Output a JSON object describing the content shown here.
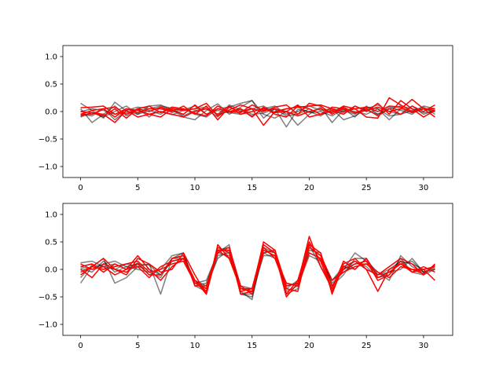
{
  "chart_data": [
    {
      "type": "line",
      "title": "",
      "xlabel": "",
      "ylabel": "",
      "xlim": [
        -1.55,
        32.55
      ],
      "ylim": [
        -1.2,
        1.2
      ],
      "xticks": [
        0,
        5,
        10,
        15,
        20,
        25,
        30
      ],
      "xtick_labels": [
        "0",
        "5",
        "10",
        "15",
        "20",
        "25",
        "30"
      ],
      "yticks": [
        -1.0,
        -0.5,
        0.0,
        0.5,
        1.0
      ],
      "ytick_labels": [
        "−1.0",
        "−0.5",
        "0.0",
        "0.5",
        "1.0"
      ],
      "grid": false,
      "x": [
        0,
        1,
        2,
        3,
        4,
        5,
        6,
        7,
        8,
        9,
        10,
        11,
        12,
        13,
        14,
        15,
        16,
        17,
        18,
        19,
        20,
        21,
        22,
        23,
        24,
        25,
        26,
        27,
        28,
        29,
        30,
        31
      ],
      "series": [
        {
          "color": "#000000",
          "opacity": 0.5,
          "values": [
            0.15,
            0.02,
            -0.12,
            0.17,
            0.01,
            -0.05,
            0.1,
            0.12,
            0.03,
            -0.1,
            -0.15,
            0.02,
            0.14,
            -0.05,
            0.08,
            0.2,
            -0.12,
            0.05,
            -0.28,
            0.04,
            0.0,
            -0.08,
            0.05,
            -0.02,
            0.1,
            0.02,
            -0.05,
            0.08,
            0.02,
            -0.05,
            0.1,
            0.05
          ]
        },
        {
          "color": "#000000",
          "opacity": 0.5,
          "values": [
            0.05,
            -0.2,
            -0.05,
            0.1,
            -0.08,
            0.05,
            -0.1,
            0.08,
            -0.02,
            0.05,
            -0.05,
            -0.1,
            0.05,
            0.08,
            0.15,
            0.2,
            -0.05,
            -0.12,
            0.0,
            -0.25,
            -0.05,
            0.08,
            -0.2,
            0.03,
            -0.05,
            0.08,
            0.05,
            -0.15,
            0.05,
            -0.02,
            0.05,
            0.0
          ]
        },
        {
          "color": "#000000",
          "opacity": 0.5,
          "values": [
            -0.05,
            -0.08,
            0.05,
            -0.15,
            0.02,
            0.08,
            0.05,
            0.1,
            0.06,
            -0.08,
            0.02,
            0.05,
            -0.1,
            0.12,
            0.03,
            -0.08,
            0.05,
            0.1,
            -0.05,
            0.0,
            0.1,
            0.02,
            0.05,
            -0.15,
            -0.08,
            0.05,
            0.12,
            0.0,
            -0.05,
            0.1,
            -0.05,
            0.02
          ]
        },
        {
          "color": "#000000",
          "opacity": 0.5,
          "values": [
            -0.1,
            -0.02,
            -0.1,
            0.0,
            0.1,
            -0.05,
            0.02,
            -0.05,
            0.08,
            0.03,
            0.1,
            -0.05,
            0.02,
            -0.02,
            -0.05,
            0.05,
            0.1,
            -0.02,
            0.05,
            0.08,
            -0.02,
            0.0,
            -0.08,
            0.05,
            0.0,
            -0.05,
            0.05,
            -0.08,
            -0.05,
            0.02,
            0.08,
            -0.05
          ]
        },
        {
          "color": "#000000",
          "opacity": 0.5,
          "values": [
            0.0,
            0.05,
            0.02,
            -0.05,
            -0.02,
            0.03,
            -0.05,
            0.0,
            -0.06,
            0.02,
            0.05,
            0.08,
            -0.05,
            0.0,
            0.05,
            -0.05,
            -0.03,
            0.05,
            -0.08,
            -0.05,
            0.05,
            -0.05,
            0.0,
            0.05,
            -0.1,
            0.1,
            -0.05,
            0.05,
            0.1,
            0.05,
            -0.02,
            0.0
          ]
        },
        {
          "color": "#ff0000",
          "opacity": 1,
          "values": [
            0.07,
            0.08,
            0.1,
            -0.05,
            0.05,
            -0.02,
            0.05,
            0.05,
            0.0,
            0.1,
            -0.05,
            0.1,
            -0.15,
            0.08,
            0.0,
            0.05,
            -0.25,
            0.0,
            0.05,
            0.08,
            0.1,
            0.12,
            0.05,
            0.0,
            0.05,
            -0.1,
            -0.12,
            0.25,
            0.12,
            0.0,
            0.05,
            0.05
          ]
        },
        {
          "color": "#ff0000",
          "opacity": 1,
          "values": [
            -0.05,
            -0.05,
            0.05,
            -0.1,
            0.05,
            0.02,
            -0.05,
            -0.1,
            0.05,
            0.02,
            0.05,
            0.15,
            -0.08,
            0.03,
            0.12,
            0.05,
            0.0,
            0.08,
            0.12,
            -0.05,
            0.15,
            0.1,
            -0.05,
            0.08,
            -0.03,
            0.02,
            0.08,
            0.0,
            0.05,
            0.22,
            0.05,
            -0.1
          ]
        },
        {
          "color": "#ff0000",
          "opacity": 1,
          "values": [
            0.0,
            -0.02,
            -0.08,
            0.05,
            -0.12,
            0.05,
            0.0,
            0.08,
            0.02,
            -0.05,
            0.12,
            -0.05,
            0.05,
            0.0,
            0.05,
            -0.1,
            0.08,
            -0.05,
            -0.1,
            0.1,
            0.05,
            -0.05,
            0.02,
            -0.05,
            0.1,
            0.0,
            0.15,
            -0.05,
            0.2,
            0.05,
            -0.1,
            0.02
          ]
        },
        {
          "color": "#ff0000",
          "opacity": 1,
          "values": [
            -0.08,
            -0.02,
            -0.05,
            -0.2,
            0.02,
            -0.1,
            -0.05,
            0.0,
            -0.05,
            -0.1,
            0.0,
            0.05,
            -0.05,
            0.1,
            -0.05,
            0.0,
            0.05,
            -0.02,
            0.0,
            0.12,
            -0.1,
            -0.05,
            0.08,
            0.05,
            -0.02,
            0.05,
            -0.08,
            0.05,
            -0.05,
            0.1,
            0.0,
            0.12
          ]
        },
        {
          "color": "#ff0000",
          "opacity": 1,
          "values": [
            -0.05,
            0.02,
            0.05,
            0.08,
            -0.05,
            0.05,
            0.1,
            -0.02,
            0.08,
            0.05,
            -0.03,
            -0.08,
            0.1,
            0.0,
            -0.02,
            0.12,
            0.02,
            0.05,
            0.0,
            -0.08,
            0.0,
            0.05,
            -0.02,
            0.1,
            0.05,
            0.08,
            0.0,
            0.1,
            0.08,
            -0.02,
            0.05,
            0.02
          ]
        }
      ]
    },
    {
      "type": "line",
      "title": "",
      "xlabel": "",
      "ylabel": "",
      "xlim": [
        -1.55,
        32.55
      ],
      "ylim": [
        -1.2,
        1.2
      ],
      "xticks": [
        0,
        5,
        10,
        15,
        20,
        25,
        30
      ],
      "xtick_labels": [
        "0",
        "5",
        "10",
        "15",
        "20",
        "25",
        "30"
      ],
      "yticks": [
        -1.0,
        -0.5,
        0.0,
        0.5,
        1.0
      ],
      "ytick_labels": [
        "−1.0",
        "−0.5",
        "0.0",
        "0.5",
        "1.0"
      ],
      "grid": false,
      "x": [
        0,
        1,
        2,
        3,
        4,
        5,
        6,
        7,
        8,
        9,
        10,
        11,
        12,
        13,
        14,
        15,
        16,
        17,
        18,
        19,
        20,
        21,
        22,
        23,
        24,
        25,
        26,
        27,
        28,
        29,
        30,
        31
      ],
      "series": [
        {
          "color": "#000000",
          "opacity": 0.5,
          "values": [
            -0.25,
            0.05,
            0.2,
            -0.25,
            -0.15,
            0.05,
            0.1,
            -0.45,
            0.2,
            0.2,
            -0.2,
            -0.35,
            0.25,
            0.3,
            -0.4,
            -0.55,
            0.4,
            0.3,
            -0.35,
            -0.2,
            0.45,
            0.05,
            -0.3,
            0.0,
            0.3,
            0.15,
            -0.05,
            -0.2,
            0.25,
            0.05,
            -0.05,
            0.05
          ]
        },
        {
          "color": "#000000",
          "opacity": 0.5,
          "values": [
            0.12,
            0.15,
            0.05,
            0.1,
            0.0,
            0.12,
            -0.1,
            0.0,
            0.25,
            0.3,
            -0.3,
            -0.25,
            0.3,
            0.45,
            -0.45,
            -0.5,
            0.3,
            0.35,
            -0.4,
            -0.3,
            0.4,
            0.25,
            -0.2,
            0.05,
            0.0,
            0.2,
            -0.15,
            -0.05,
            0.0,
            0.2,
            -0.05,
            0.0
          ]
        },
        {
          "color": "#000000",
          "opacity": 0.5,
          "values": [
            0.05,
            0.0,
            0.1,
            0.15,
            0.05,
            0.1,
            0.08,
            -0.1,
            0.2,
            0.25,
            -0.2,
            -0.3,
            0.2,
            0.35,
            -0.35,
            -0.4,
            0.25,
            0.25,
            -0.3,
            -0.25,
            0.3,
            0.2,
            -0.25,
            -0.05,
            0.1,
            0.1,
            -0.1,
            0.0,
            0.15,
            0.1,
            0.0,
            0.05
          ]
        },
        {
          "color": "#000000",
          "opacity": 0.5,
          "values": [
            -0.15,
            0.08,
            0.05,
            0.0,
            0.1,
            0.05,
            0.0,
            -0.1,
            0.15,
            0.2,
            -0.25,
            -0.2,
            0.3,
            0.25,
            -0.3,
            -0.35,
            0.3,
            0.2,
            -0.25,
            -0.3,
            0.25,
            0.15,
            -0.2,
            0.0,
            0.15,
            0.05,
            -0.15,
            -0.1,
            0.2,
            -0.05,
            -0.1,
            0.0
          ]
        },
        {
          "color": "#000000",
          "opacity": 0.5,
          "values": [
            0.02,
            -0.05,
            0.15,
            -0.05,
            0.05,
            0.0,
            -0.05,
            -0.15,
            0.2,
            0.3,
            -0.3,
            -0.4,
            0.35,
            0.4,
            -0.45,
            -0.45,
            0.35,
            0.3,
            -0.45,
            -0.35,
            0.35,
            0.3,
            -0.3,
            -0.1,
            0.2,
            0.2,
            -0.1,
            -0.05,
            0.1,
            0.15,
            -0.05,
            0.02
          ]
        },
        {
          "color": "#ff0000",
          "opacity": 1,
          "values": [
            0.1,
            0.0,
            0.05,
            -0.1,
            0.0,
            0.25,
            0.0,
            -0.2,
            0.05,
            0.2,
            -0.2,
            -0.45,
            0.45,
            0.2,
            -0.35,
            -0.35,
            0.45,
            0.3,
            -0.5,
            -0.25,
            0.6,
            0.05,
            -0.35,
            0.15,
            0.0,
            0.2,
            -0.15,
            -0.05,
            0.1,
            0.0,
            0.0,
            0.05
          ]
        },
        {
          "color": "#ff0000",
          "opacity": 1,
          "values": [
            0.0,
            -0.15,
            0.1,
            0.0,
            -0.1,
            0.2,
            0.1,
            -0.05,
            0.0,
            0.3,
            -0.1,
            -0.45,
            0.35,
            0.2,
            -0.35,
            -0.4,
            0.5,
            0.35,
            -0.45,
            -0.2,
            0.5,
            0.15,
            -0.4,
            0.05,
            0.15,
            0.0,
            -0.1,
            0.05,
            0.2,
            0.1,
            -0.1,
            0.1
          ]
        },
        {
          "color": "#ff0000",
          "opacity": 1,
          "values": [
            -0.1,
            0.05,
            0.0,
            0.05,
            0.1,
            0.15,
            -0.05,
            0.0,
            0.1,
            0.15,
            -0.25,
            -0.35,
            0.3,
            0.4,
            -0.3,
            -0.45,
            0.4,
            0.2,
            -0.35,
            -0.4,
            0.45,
            0.3,
            -0.45,
            0.1,
            0.2,
            0.0,
            -0.4,
            0.0,
            0.1,
            -0.05,
            0.05,
            -0.05
          ]
        },
        {
          "color": "#ff0000",
          "opacity": 1,
          "values": [
            0.05,
            0.1,
            -0.05,
            0.1,
            0.0,
            0.05,
            -0.15,
            0.05,
            0.15,
            0.2,
            -0.2,
            -0.4,
            0.4,
            0.3,
            -0.4,
            -0.35,
            0.35,
            0.25,
            -0.25,
            -0.3,
            0.3,
            0.2,
            -0.3,
            0.0,
            0.1,
            0.15,
            -0.2,
            -0.1,
            0.15,
            -0.05,
            0.0,
            -0.2
          ]
        },
        {
          "color": "#ff0000",
          "opacity": 1,
          "values": [
            -0.05,
            0.05,
            0.2,
            0.0,
            -0.05,
            0.1,
            -0.1,
            -0.1,
            0.2,
            0.25,
            -0.3,
            -0.3,
            0.35,
            0.35,
            -0.45,
            -0.4,
            0.3,
            0.35,
            -0.3,
            -0.25,
            0.4,
            0.25,
            -0.2,
            -0.05,
            0.05,
            0.1,
            -0.05,
            -0.15,
            0.05,
            0.0,
            -0.08,
            0.08
          ]
        }
      ]
    }
  ]
}
